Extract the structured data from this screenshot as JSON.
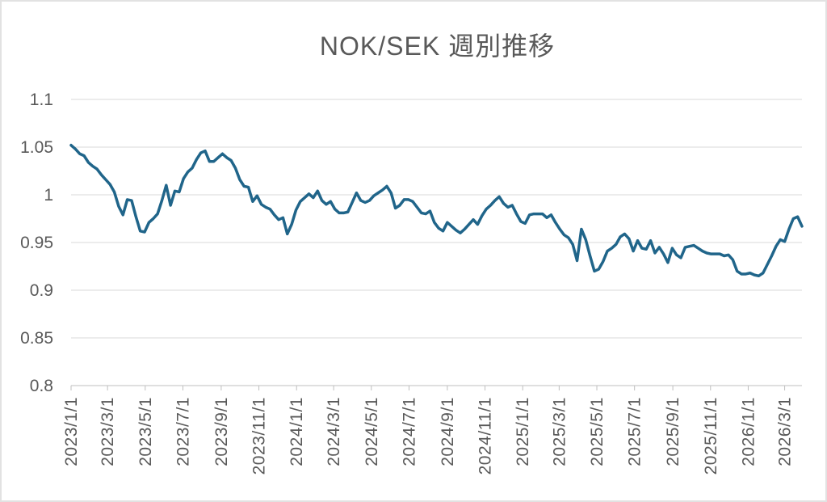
{
  "page": {
    "background_color": "#ffffff",
    "border_color": "#e2e2e2"
  },
  "chart_data": {
    "type": "line",
    "title": "NOK/SEK 週別推移",
    "legend": "none",
    "grid": "horizontal",
    "text_color": "#595959",
    "gridline_color": "#d9d9d9",
    "axis_color": "#bfbfbf",
    "ylim": [
      0.8,
      1.1
    ],
    "y_ticks": {
      "labels": [
        "1.1",
        "1.05",
        "1",
        "0.95",
        "0.9",
        "0.85",
        "0.8"
      ],
      "values": [
        1.1,
        1.05,
        1.0,
        0.95,
        0.9,
        0.85,
        0.8
      ]
    },
    "x_tick_labels": [
      "2023/1/1",
      "2023/3/1",
      "2023/5/1",
      "2023/7/1",
      "2023/9/1",
      "2023/11/1",
      "2024/1/1",
      "2024/3/1",
      "2024/5/1",
      "2024/7/1",
      "2024/9/1",
      "2024/11/1",
      "2025/1/1",
      "2025/3/1",
      "2025/5/1",
      "2025/7/1",
      "2025/9/1",
      "2025/11/1",
      "2026/1/1",
      "2026/3/1"
    ],
    "series": [
      {
        "name": "NOK/SEK",
        "color": "#20658a",
        "frequency": "weekly",
        "start_date": "2023/1/1",
        "values": [
          1.052,
          1.048,
          1.043,
          1.041,
          1.034,
          1.03,
          1.027,
          1.021,
          1.016,
          1.011,
          1.003,
          0.988,
          0.979,
          0.995,
          0.994,
          0.977,
          0.962,
          0.961,
          0.971,
          0.975,
          0.98,
          0.994,
          1.01,
          0.989,
          1.004,
          1.003,
          1.017,
          1.024,
          1.028,
          1.037,
          1.044,
          1.046,
          1.035,
          1.035,
          1.039,
          1.043,
          1.039,
          1.036,
          1.028,
          1.016,
          1.009,
          1.008,
          0.993,
          0.999,
          0.99,
          0.987,
          0.985,
          0.979,
          0.974,
          0.976,
          0.959,
          0.969,
          0.984,
          0.993,
          0.997,
          1.001,
          0.997,
          1.004,
          0.994,
          0.99,
          0.993,
          0.985,
          0.981,
          0.981,
          0.982,
          0.992,
          1.002,
          0.994,
          0.992,
          0.994,
          0.999,
          1.002,
          1.005,
          1.009,
          1.002,
          0.986,
          0.989,
          0.995,
          0.995,
          0.993,
          0.987,
          0.981,
          0.98,
          0.983,
          0.971,
          0.965,
          0.962,
          0.971,
          0.967,
          0.963,
          0.96,
          0.964,
          0.969,
          0.974,
          0.969,
          0.978,
          0.985,
          0.989,
          0.994,
          0.998,
          0.991,
          0.987,
          0.989,
          0.98,
          0.972,
          0.97,
          0.979,
          0.98,
          0.98,
          0.98,
          0.976,
          0.979,
          0.971,
          0.964,
          0.958,
          0.955,
          0.948,
          0.931,
          0.964,
          0.953,
          0.936,
          0.92,
          0.922,
          0.93,
          0.941,
          0.944,
          0.948,
          0.956,
          0.959,
          0.954,
          0.941,
          0.952,
          0.944,
          0.943,
          0.952,
          0.939,
          0.945,
          0.938,
          0.929,
          0.944,
          0.937,
          0.934,
          0.945,
          0.946,
          0.947,
          0.944,
          0.941,
          0.939,
          0.938,
          0.938,
          0.938,
          0.936,
          0.937,
          0.932,
          0.92,
          0.917,
          0.917,
          0.918,
          0.916,
          0.915,
          0.918,
          0.927,
          0.936,
          0.946,
          0.953,
          0.951,
          0.964,
          0.975,
          0.977,
          0.967
        ]
      }
    ]
  }
}
